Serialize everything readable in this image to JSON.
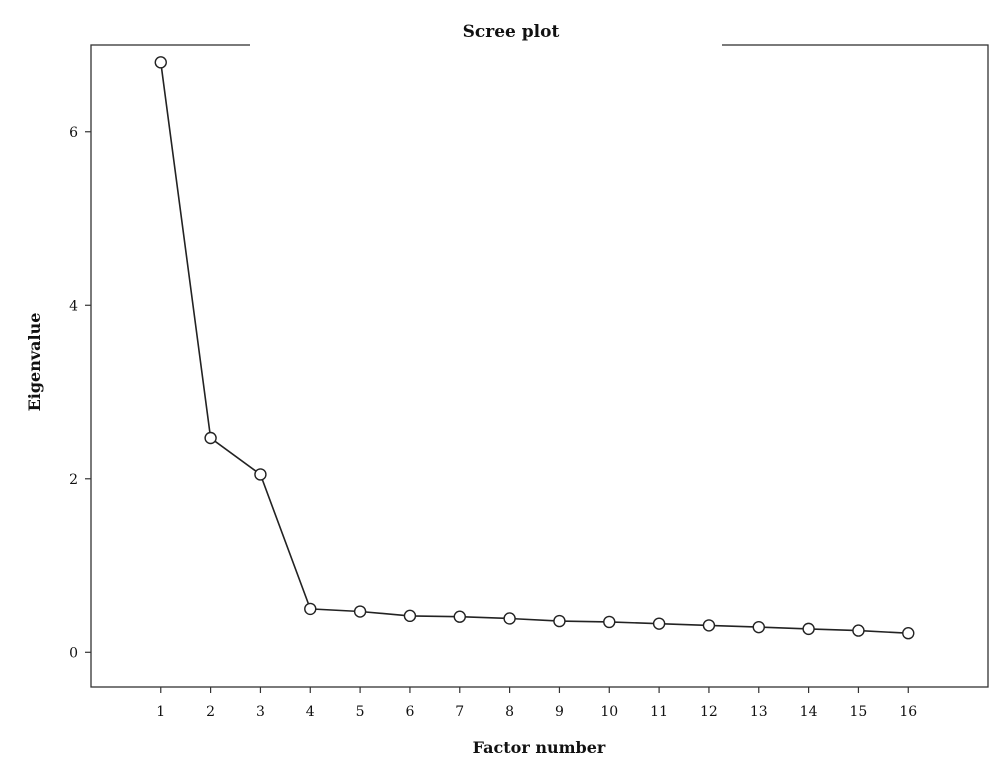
{
  "chart_data": {
    "type": "line",
    "title": "Scree plot",
    "xlabel": "Factor number",
    "ylabel": "Eigenvalue",
    "x": [
      1,
      2,
      3,
      4,
      5,
      6,
      7,
      8,
      9,
      10,
      11,
      12,
      13,
      14,
      15,
      16
    ],
    "y": [
      6.8,
      2.47,
      2.05,
      0.5,
      0.47,
      0.42,
      0.41,
      0.39,
      0.36,
      0.35,
      0.33,
      0.31,
      0.29,
      0.27,
      0.25,
      0.22
    ],
    "xticks": [
      "1",
      "2",
      "3",
      "4",
      "5",
      "6",
      "7",
      "8",
      "9",
      "10",
      "11",
      "12",
      "13",
      "14",
      "15",
      "16"
    ],
    "yticks": [
      "0",
      "2",
      "4",
      "6"
    ],
    "ytick_values": [
      0,
      2,
      4,
      6
    ],
    "ylim": [
      -0.4,
      7.0
    ],
    "xlim": [
      -0.4,
      17.6
    ],
    "marker": "open-circle",
    "grid": false,
    "line_color": "#222222"
  }
}
